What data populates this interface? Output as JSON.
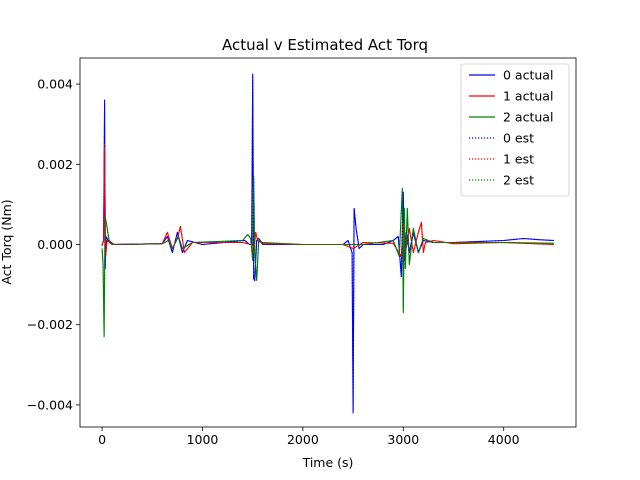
{
  "chart_data": {
    "type": "line",
    "title": "Actual v Estimated Act Torq",
    "xlabel": "Time (s)",
    "ylabel": "Act Torq (Nm)",
    "xlim": [
      -220,
      4720
    ],
    "ylim": [
      -0.00455,
      0.00465
    ],
    "xticks": [
      0,
      1000,
      2000,
      3000,
      4000
    ],
    "xtick_labels": [
      "0",
      "1000",
      "2000",
      "3000",
      "4000"
    ],
    "yticks": [
      -0.004,
      -0.002,
      0.0,
      0.002,
      0.004
    ],
    "ytick_labels": [
      "−0.004",
      "−0.002",
      "0.000",
      "0.002",
      "0.004"
    ],
    "grid": false,
    "legend_position": "top-right",
    "series": [
      {
        "name": "0 actual",
        "color": "#0000ff",
        "style": "solid",
        "x": [
          0,
          15,
          25,
          30,
          40,
          60,
          100,
          600,
          650,
          700,
          750,
          800,
          850,
          1000,
          1420,
          1470,
          1490,
          1500,
          1510,
          1520,
          1540,
          1560,
          1600,
          2000,
          2400,
          2450,
          2490,
          2500,
          2510,
          2530,
          2560,
          2600,
          2800,
          2900,
          2950,
          2980,
          3000,
          3010,
          3030,
          3060,
          3100,
          3150,
          3200,
          3300,
          3500,
          4000,
          4200,
          4350,
          4500
        ],
        "y": [
          -2e-05,
          0.0001,
          0.0036,
          -0.0006,
          0.0002,
          0.0001,
          0.0,
          2e-05,
          0.0002,
          -0.0002,
          0.0003,
          -0.0002,
          0.0001,
          0.0,
          0.0001,
          0.0,
          0.0,
          0.00425,
          -0.00085,
          -0.0009,
          0.0001,
          0.00015,
          0.0,
          0.0,
          0.0,
          0.0001,
          -0.0002,
          -0.0042,
          0.0009,
          0.0004,
          -0.0001,
          0.0,
          0.0,
          0.0001,
          0.0002,
          -0.0008,
          0.0013,
          -0.0004,
          0.0003,
          -0.0002,
          0.0003,
          -0.0002,
          0.0001,
          5e-05,
          5e-05,
          0.0001,
          0.00015,
          0.00012,
          0.0001
        ]
      },
      {
        "name": "1 actual",
        "color": "#ff0000",
        "style": "solid",
        "x": [
          0,
          15,
          25,
          35,
          50,
          100,
          600,
          650,
          700,
          750,
          780,
          820,
          900,
          1400,
          1480,
          1500,
          1510,
          1530,
          1550,
          1600,
          2000,
          2400,
          2500,
          2600,
          2900,
          2980,
          3000,
          3020,
          3060,
          3100,
          3150,
          3180,
          3200,
          3220,
          3300,
          3500,
          4000,
          4500
        ],
        "y": [
          -3e-05,
          0.0001,
          0.0025,
          -0.0003,
          0.0001,
          0.0,
          2e-05,
          0.0003,
          -0.0001,
          0.00015,
          0.00045,
          -0.0002,
          5e-05,
          5e-05,
          0.0,
          0.0,
          -0.0002,
          0.0003,
          0.0001,
          2e-05,
          0.0,
          0.0,
          -0.0001,
          5e-05,
          3e-05,
          -0.0003,
          0.0005,
          -0.0002,
          0.0004,
          -0.0002,
          0.0003,
          0.00055,
          -0.0002,
          5e-05,
          0.0001,
          2e-05,
          5e-05,
          0.0
        ]
      },
      {
        "name": "2 actual",
        "color": "#008000",
        "style": "solid",
        "x": [
          0,
          10,
          20,
          30,
          45,
          70,
          120,
          600,
          660,
          700,
          760,
          800,
          900,
          1400,
          1450,
          1480,
          1500,
          1510,
          1520,
          1540,
          1560,
          1600,
          2000,
          2400,
          2500,
          2600,
          2900,
          2960,
          2990,
          3000,
          3010,
          3020,
          3040,
          3060,
          3100,
          3150,
          3200,
          3300,
          3500,
          4000,
          4500
        ],
        "y": [
          -0.0001,
          -0.0005,
          -0.0023,
          0.0007,
          0.0005,
          0.0001,
          0.0,
          2e-05,
          0.0001,
          -0.0001,
          0.0002,
          -0.0001,
          5e-05,
          0.0001,
          0.00025,
          0.00015,
          -0.0004,
          0.0017,
          -0.0002,
          -0.0009,
          0.0001,
          5e-05,
          0.0,
          0.0,
          0.0,
          0.0,
          0.0001,
          -0.0003,
          0.0014,
          -0.0017,
          0.0009,
          -0.0006,
          0.0009,
          -0.0005,
          0.0004,
          -0.0002,
          0.00015,
          5e-05,
          5e-05,
          5e-05,
          3e-05
        ]
      },
      {
        "name": "0 est",
        "color": "#0000ff",
        "style": "dotted",
        "x": [
          0,
          15,
          25,
          30,
          40,
          60,
          100,
          600,
          650,
          700,
          750,
          800,
          850,
          1000,
          1420,
          1470,
          1490,
          1500,
          1510,
          1520,
          1540,
          1560,
          1600,
          2000,
          2400,
          2450,
          2490,
          2500,
          2510,
          2530,
          2560,
          2600,
          2800,
          2900,
          2950,
          2980,
          3000,
          3010,
          3030,
          3060,
          3100,
          3150,
          3200,
          3300,
          3500,
          4000,
          4200,
          4350,
          4500
        ],
        "y": [
          -2e-05,
          0.0001,
          0.0035,
          -0.0006,
          0.0002,
          0.0001,
          0.0,
          2e-05,
          0.0002,
          -0.0002,
          0.0003,
          -0.0002,
          0.0001,
          0.0,
          0.0001,
          0.0,
          0.0,
          0.0042,
          -0.00085,
          -0.0009,
          0.0001,
          0.00015,
          0.0,
          0.0,
          0.0,
          0.0001,
          -0.0002,
          -0.0041,
          0.0009,
          0.0004,
          -0.0001,
          0.0,
          0.0,
          0.0001,
          0.0002,
          -0.0008,
          0.0013,
          -0.0004,
          0.0003,
          -0.0002,
          0.0003,
          -0.0002,
          0.0001,
          5e-05,
          5e-05,
          0.0001,
          0.00015,
          0.00012,
          0.0001
        ]
      },
      {
        "name": "1 est",
        "color": "#ff0000",
        "style": "dotted",
        "x": [
          0,
          15,
          25,
          35,
          50,
          100,
          600,
          650,
          700,
          750,
          780,
          820,
          900,
          1400,
          1480,
          1500,
          1510,
          1530,
          1550,
          1600,
          2000,
          2400,
          2500,
          2600,
          2900,
          2980,
          3000,
          3020,
          3060,
          3100,
          3150,
          3180,
          3200,
          3220,
          3300,
          3500,
          4000,
          4500
        ],
        "y": [
          -3e-05,
          0.0001,
          0.0024,
          -0.0003,
          0.0001,
          0.0,
          2e-05,
          0.0003,
          -0.0001,
          0.00015,
          0.00045,
          -0.0002,
          5e-05,
          5e-05,
          0.0,
          0.0,
          -0.0002,
          0.0003,
          0.0001,
          2e-05,
          0.0,
          0.0,
          -0.0001,
          5e-05,
          3e-05,
          -0.0003,
          0.0005,
          -0.0002,
          0.0004,
          -0.0002,
          0.0003,
          0.00055,
          -0.0002,
          5e-05,
          0.0001,
          2e-05,
          5e-05,
          0.0
        ]
      },
      {
        "name": "2 est",
        "color": "#008000",
        "style": "dotted",
        "x": [
          0,
          10,
          20,
          30,
          45,
          70,
          120,
          600,
          660,
          700,
          760,
          800,
          900,
          1400,
          1450,
          1480,
          1500,
          1510,
          1520,
          1540,
          1560,
          1600,
          2000,
          2400,
          2500,
          2600,
          2900,
          2960,
          2990,
          3000,
          3010,
          3020,
          3040,
          3060,
          3100,
          3150,
          3200,
          3300,
          3500,
          4000,
          4500
        ],
        "y": [
          -0.0001,
          -0.0005,
          -0.0022,
          0.0007,
          0.0005,
          0.0001,
          0.0,
          2e-05,
          0.0001,
          -0.0001,
          0.0002,
          -0.0001,
          5e-05,
          0.0001,
          0.00025,
          0.00015,
          -0.0004,
          0.0016,
          -0.0002,
          -0.0009,
          0.0001,
          5e-05,
          0.0,
          0.0,
          0.0,
          0.0,
          0.0001,
          -0.0003,
          0.00135,
          -0.0016,
          0.0009,
          -0.0006,
          0.0009,
          -0.0005,
          0.0004,
          -0.0002,
          0.00015,
          5e-05,
          5e-05,
          5e-05,
          3e-05
        ]
      }
    ]
  }
}
